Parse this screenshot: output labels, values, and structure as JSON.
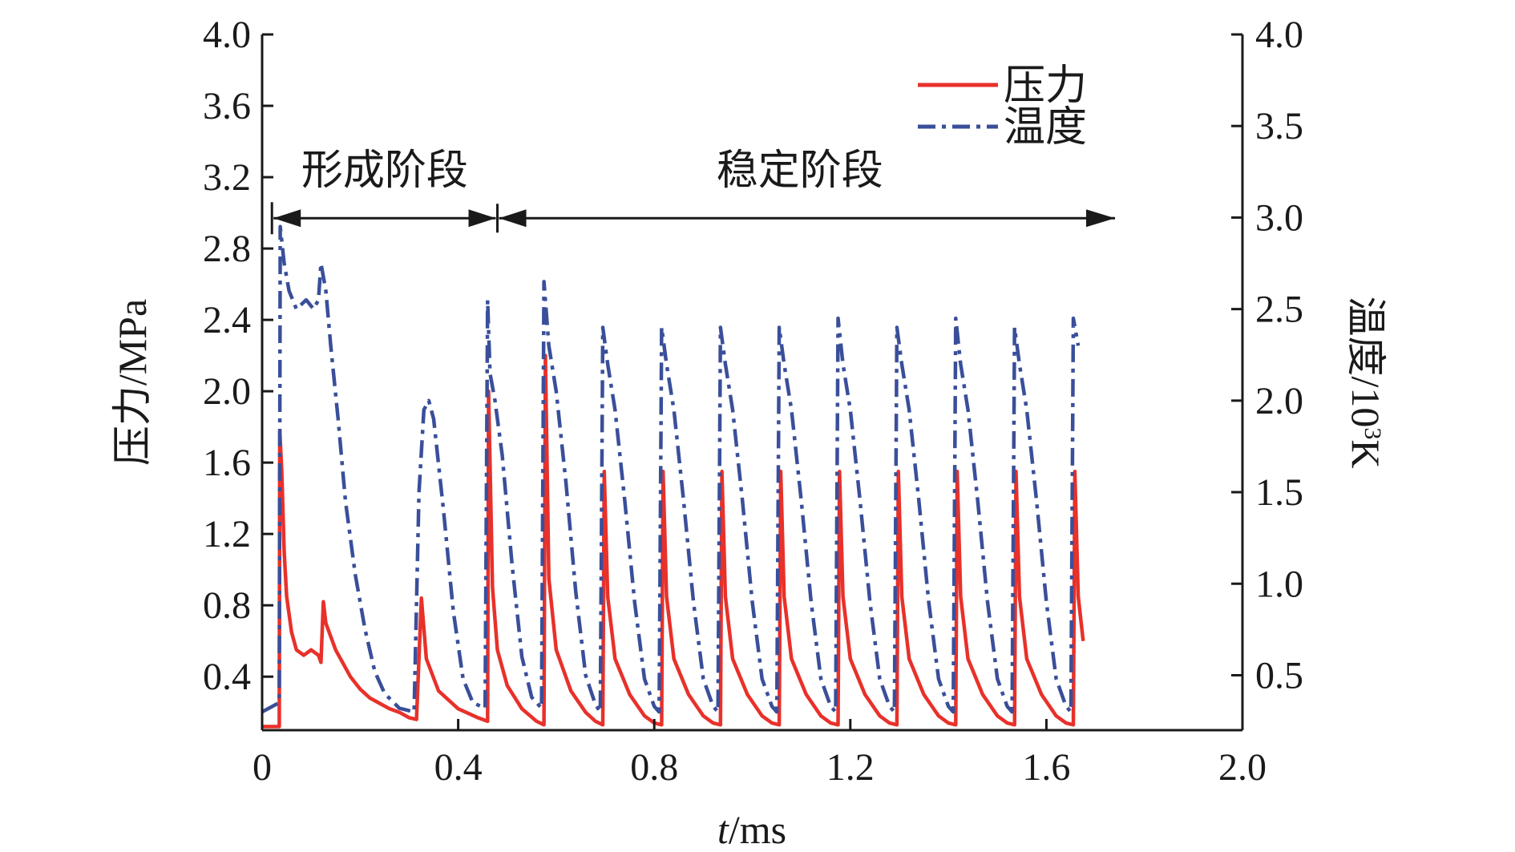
{
  "chart_data": {
    "type": "line",
    "xlabel_italic": "t",
    "xlabel_rest": "/ms",
    "ylabel": "压力/MPa",
    "y2label_prefix": "温度/10",
    "y2label_sup": "3",
    "y2label_suffix": "K",
    "xlim": [
      0,
      2.0
    ],
    "ylim": [
      0.1,
      4.0
    ],
    "y2lim": [
      0.2,
      4.0
    ],
    "x_ticks": [
      "0",
      "0.4",
      "0.8",
      "1.2",
      "1.6",
      "2.0"
    ],
    "x_tick_values": [
      0,
      0.4,
      0.8,
      1.2,
      1.6,
      2.0
    ],
    "y_ticks": [
      "0.4",
      "0.8",
      "1.2",
      "1.6",
      "2.0",
      "2.4",
      "2.8",
      "3.2",
      "3.6",
      "4.0"
    ],
    "y_tick_values": [
      0.4,
      0.8,
      1.2,
      1.6,
      2.0,
      2.4,
      2.8,
      3.2,
      3.6,
      4.0
    ],
    "y2_ticks": [
      "0.5",
      "1.0",
      "1.5",
      "2.0",
      "2.5",
      "3.0",
      "3.5",
      "4.0"
    ],
    "y2_tick_values": [
      0.5,
      1.0,
      1.5,
      2.0,
      2.5,
      3.0,
      3.5,
      4.0
    ],
    "grid": false,
    "legend_position": "top-right",
    "annotations": {
      "formation_label": "形成阶段",
      "formation_range": [
        0.02,
        0.48
      ],
      "stable_label": "稳定阶段",
      "stable_range": [
        0.48,
        1.74
      ],
      "y": 2.97
    },
    "series": [
      {
        "name": "压力",
        "axis": "left",
        "color": "#e8312a",
        "style": "solid",
        "points": [
          [
            0.0,
            0.12
          ],
          [
            0.035,
            0.12
          ],
          [
            0.036,
            1.78
          ],
          [
            0.04,
            1.55
          ],
          [
            0.045,
            1.1
          ],
          [
            0.05,
            0.85
          ],
          [
            0.06,
            0.65
          ],
          [
            0.07,
            0.55
          ],
          [
            0.085,
            0.52
          ],
          [
            0.1,
            0.55
          ],
          [
            0.115,
            0.52
          ],
          [
            0.12,
            0.48
          ],
          [
            0.125,
            0.82
          ],
          [
            0.13,
            0.7
          ],
          [
            0.15,
            0.55
          ],
          [
            0.18,
            0.4
          ],
          [
            0.2,
            0.33
          ],
          [
            0.22,
            0.28
          ],
          [
            0.24,
            0.25
          ],
          [
            0.26,
            0.22
          ],
          [
            0.28,
            0.2
          ],
          [
            0.3,
            0.17
          ],
          [
            0.315,
            0.16
          ],
          [
            0.325,
            0.84
          ],
          [
            0.335,
            0.5
          ],
          [
            0.36,
            0.32
          ],
          [
            0.4,
            0.22
          ],
          [
            0.44,
            0.17
          ],
          [
            0.46,
            0.15
          ],
          [
            0.462,
            2.0
          ],
          [
            0.47,
            0.9
          ],
          [
            0.48,
            0.55
          ],
          [
            0.5,
            0.35
          ],
          [
            0.53,
            0.22
          ],
          [
            0.56,
            0.15
          ],
          [
            0.575,
            0.13
          ],
          [
            0.578,
            2.2
          ],
          [
            0.585,
            0.95
          ],
          [
            0.6,
            0.55
          ],
          [
            0.63,
            0.32
          ],
          [
            0.66,
            0.2
          ],
          [
            0.68,
            0.15
          ],
          [
            0.695,
            0.13
          ],
          [
            0.698,
            1.55
          ],
          [
            0.705,
            0.85
          ],
          [
            0.72,
            0.5
          ],
          [
            0.75,
            0.3
          ],
          [
            0.78,
            0.18
          ],
          [
            0.8,
            0.14
          ],
          [
            0.815,
            0.13
          ],
          [
            0.818,
            1.55
          ],
          [
            0.825,
            0.85
          ],
          [
            0.84,
            0.5
          ],
          [
            0.87,
            0.3
          ],
          [
            0.9,
            0.18
          ],
          [
            0.92,
            0.14
          ],
          [
            0.935,
            0.13
          ],
          [
            0.938,
            1.55
          ],
          [
            0.945,
            0.85
          ],
          [
            0.96,
            0.5
          ],
          [
            0.99,
            0.3
          ],
          [
            1.02,
            0.18
          ],
          [
            1.04,
            0.14
          ],
          [
            1.055,
            0.13
          ],
          [
            1.058,
            1.55
          ],
          [
            1.065,
            0.85
          ],
          [
            1.08,
            0.5
          ],
          [
            1.11,
            0.3
          ],
          [
            1.14,
            0.18
          ],
          [
            1.16,
            0.14
          ],
          [
            1.175,
            0.13
          ],
          [
            1.178,
            1.55
          ],
          [
            1.185,
            0.85
          ],
          [
            1.2,
            0.5
          ],
          [
            1.23,
            0.3
          ],
          [
            1.26,
            0.18
          ],
          [
            1.28,
            0.14
          ],
          [
            1.295,
            0.13
          ],
          [
            1.298,
            1.55
          ],
          [
            1.305,
            0.85
          ],
          [
            1.32,
            0.5
          ],
          [
            1.35,
            0.3
          ],
          [
            1.38,
            0.18
          ],
          [
            1.4,
            0.14
          ],
          [
            1.415,
            0.13
          ],
          [
            1.418,
            1.55
          ],
          [
            1.425,
            0.85
          ],
          [
            1.44,
            0.5
          ],
          [
            1.47,
            0.3
          ],
          [
            1.5,
            0.18
          ],
          [
            1.52,
            0.14
          ],
          [
            1.535,
            0.13
          ],
          [
            1.538,
            1.55
          ],
          [
            1.545,
            0.85
          ],
          [
            1.56,
            0.5
          ],
          [
            1.59,
            0.3
          ],
          [
            1.62,
            0.18
          ],
          [
            1.64,
            0.14
          ],
          [
            1.655,
            0.13
          ],
          [
            1.658,
            1.55
          ],
          [
            1.665,
            0.85
          ],
          [
            1.675,
            0.6
          ]
        ]
      },
      {
        "name": "温度",
        "axis": "right",
        "color": "#3a4f9a",
        "style": "dashdot",
        "points": [
          [
            0.0,
            0.3
          ],
          [
            0.035,
            0.35
          ],
          [
            0.037,
            2.95
          ],
          [
            0.045,
            2.75
          ],
          [
            0.055,
            2.6
          ],
          [
            0.07,
            2.5
          ],
          [
            0.09,
            2.55
          ],
          [
            0.105,
            2.5
          ],
          [
            0.115,
            2.55
          ],
          [
            0.12,
            2.75
          ],
          [
            0.13,
            2.6
          ],
          [
            0.14,
            2.3
          ],
          [
            0.155,
            1.9
          ],
          [
            0.17,
            1.45
          ],
          [
            0.19,
            1.05
          ],
          [
            0.21,
            0.75
          ],
          [
            0.23,
            0.52
          ],
          [
            0.25,
            0.4
          ],
          [
            0.28,
            0.32
          ],
          [
            0.31,
            0.3
          ],
          [
            0.32,
            1.5
          ],
          [
            0.33,
            1.95
          ],
          [
            0.34,
            2.0
          ],
          [
            0.35,
            1.9
          ],
          [
            0.37,
            1.4
          ],
          [
            0.39,
            0.85
          ],
          [
            0.41,
            0.48
          ],
          [
            0.43,
            0.35
          ],
          [
            0.455,
            0.32
          ],
          [
            0.46,
            2.55
          ],
          [
            0.465,
            2.15
          ],
          [
            0.475,
            2.0
          ],
          [
            0.49,
            1.7
          ],
          [
            0.51,
            1.1
          ],
          [
            0.53,
            0.6
          ],
          [
            0.55,
            0.38
          ],
          [
            0.57,
            0.32
          ],
          [
            0.575,
            2.65
          ],
          [
            0.585,
            2.3
          ],
          [
            0.6,
            2.05
          ],
          [
            0.62,
            1.55
          ],
          [
            0.64,
            0.95
          ],
          [
            0.66,
            0.5
          ],
          [
            0.68,
            0.34
          ],
          [
            0.69,
            0.3
          ],
          [
            0.695,
            2.4
          ],
          [
            0.705,
            2.2
          ],
          [
            0.72,
            1.95
          ],
          [
            0.74,
            1.45
          ],
          [
            0.76,
            0.9
          ],
          [
            0.78,
            0.48
          ],
          [
            0.8,
            0.33
          ],
          [
            0.81,
            0.3
          ],
          [
            0.815,
            2.4
          ],
          [
            0.825,
            2.2
          ],
          [
            0.84,
            1.95
          ],
          [
            0.86,
            1.45
          ],
          [
            0.88,
            0.9
          ],
          [
            0.9,
            0.48
          ],
          [
            0.92,
            0.33
          ],
          [
            0.93,
            0.3
          ],
          [
            0.935,
            2.4
          ],
          [
            0.945,
            2.2
          ],
          [
            0.96,
            1.95
          ],
          [
            0.98,
            1.45
          ],
          [
            1.0,
            0.9
          ],
          [
            1.02,
            0.48
          ],
          [
            1.04,
            0.33
          ],
          [
            1.05,
            0.3
          ],
          [
            1.055,
            2.4
          ],
          [
            1.065,
            2.2
          ],
          [
            1.08,
            1.95
          ],
          [
            1.1,
            1.45
          ],
          [
            1.12,
            0.9
          ],
          [
            1.14,
            0.48
          ],
          [
            1.16,
            0.33
          ],
          [
            1.17,
            0.3
          ],
          [
            1.175,
            2.45
          ],
          [
            1.185,
            2.2
          ],
          [
            1.2,
            1.95
          ],
          [
            1.22,
            1.45
          ],
          [
            1.24,
            0.9
          ],
          [
            1.26,
            0.48
          ],
          [
            1.28,
            0.33
          ],
          [
            1.29,
            0.3
          ],
          [
            1.295,
            2.4
          ],
          [
            1.305,
            2.2
          ],
          [
            1.32,
            1.95
          ],
          [
            1.34,
            1.45
          ],
          [
            1.36,
            0.9
          ],
          [
            1.38,
            0.48
          ],
          [
            1.4,
            0.33
          ],
          [
            1.41,
            0.3
          ],
          [
            1.415,
            2.45
          ],
          [
            1.425,
            2.2
          ],
          [
            1.44,
            1.95
          ],
          [
            1.46,
            1.45
          ],
          [
            1.48,
            0.9
          ],
          [
            1.5,
            0.48
          ],
          [
            1.52,
            0.33
          ],
          [
            1.53,
            0.3
          ],
          [
            1.535,
            2.4
          ],
          [
            1.545,
            2.2
          ],
          [
            1.56,
            1.95
          ],
          [
            1.58,
            1.45
          ],
          [
            1.6,
            0.9
          ],
          [
            1.62,
            0.48
          ],
          [
            1.64,
            0.33
          ],
          [
            1.65,
            0.3
          ],
          [
            1.655,
            2.45
          ],
          [
            1.665,
            2.3
          ]
        ]
      }
    ]
  }
}
